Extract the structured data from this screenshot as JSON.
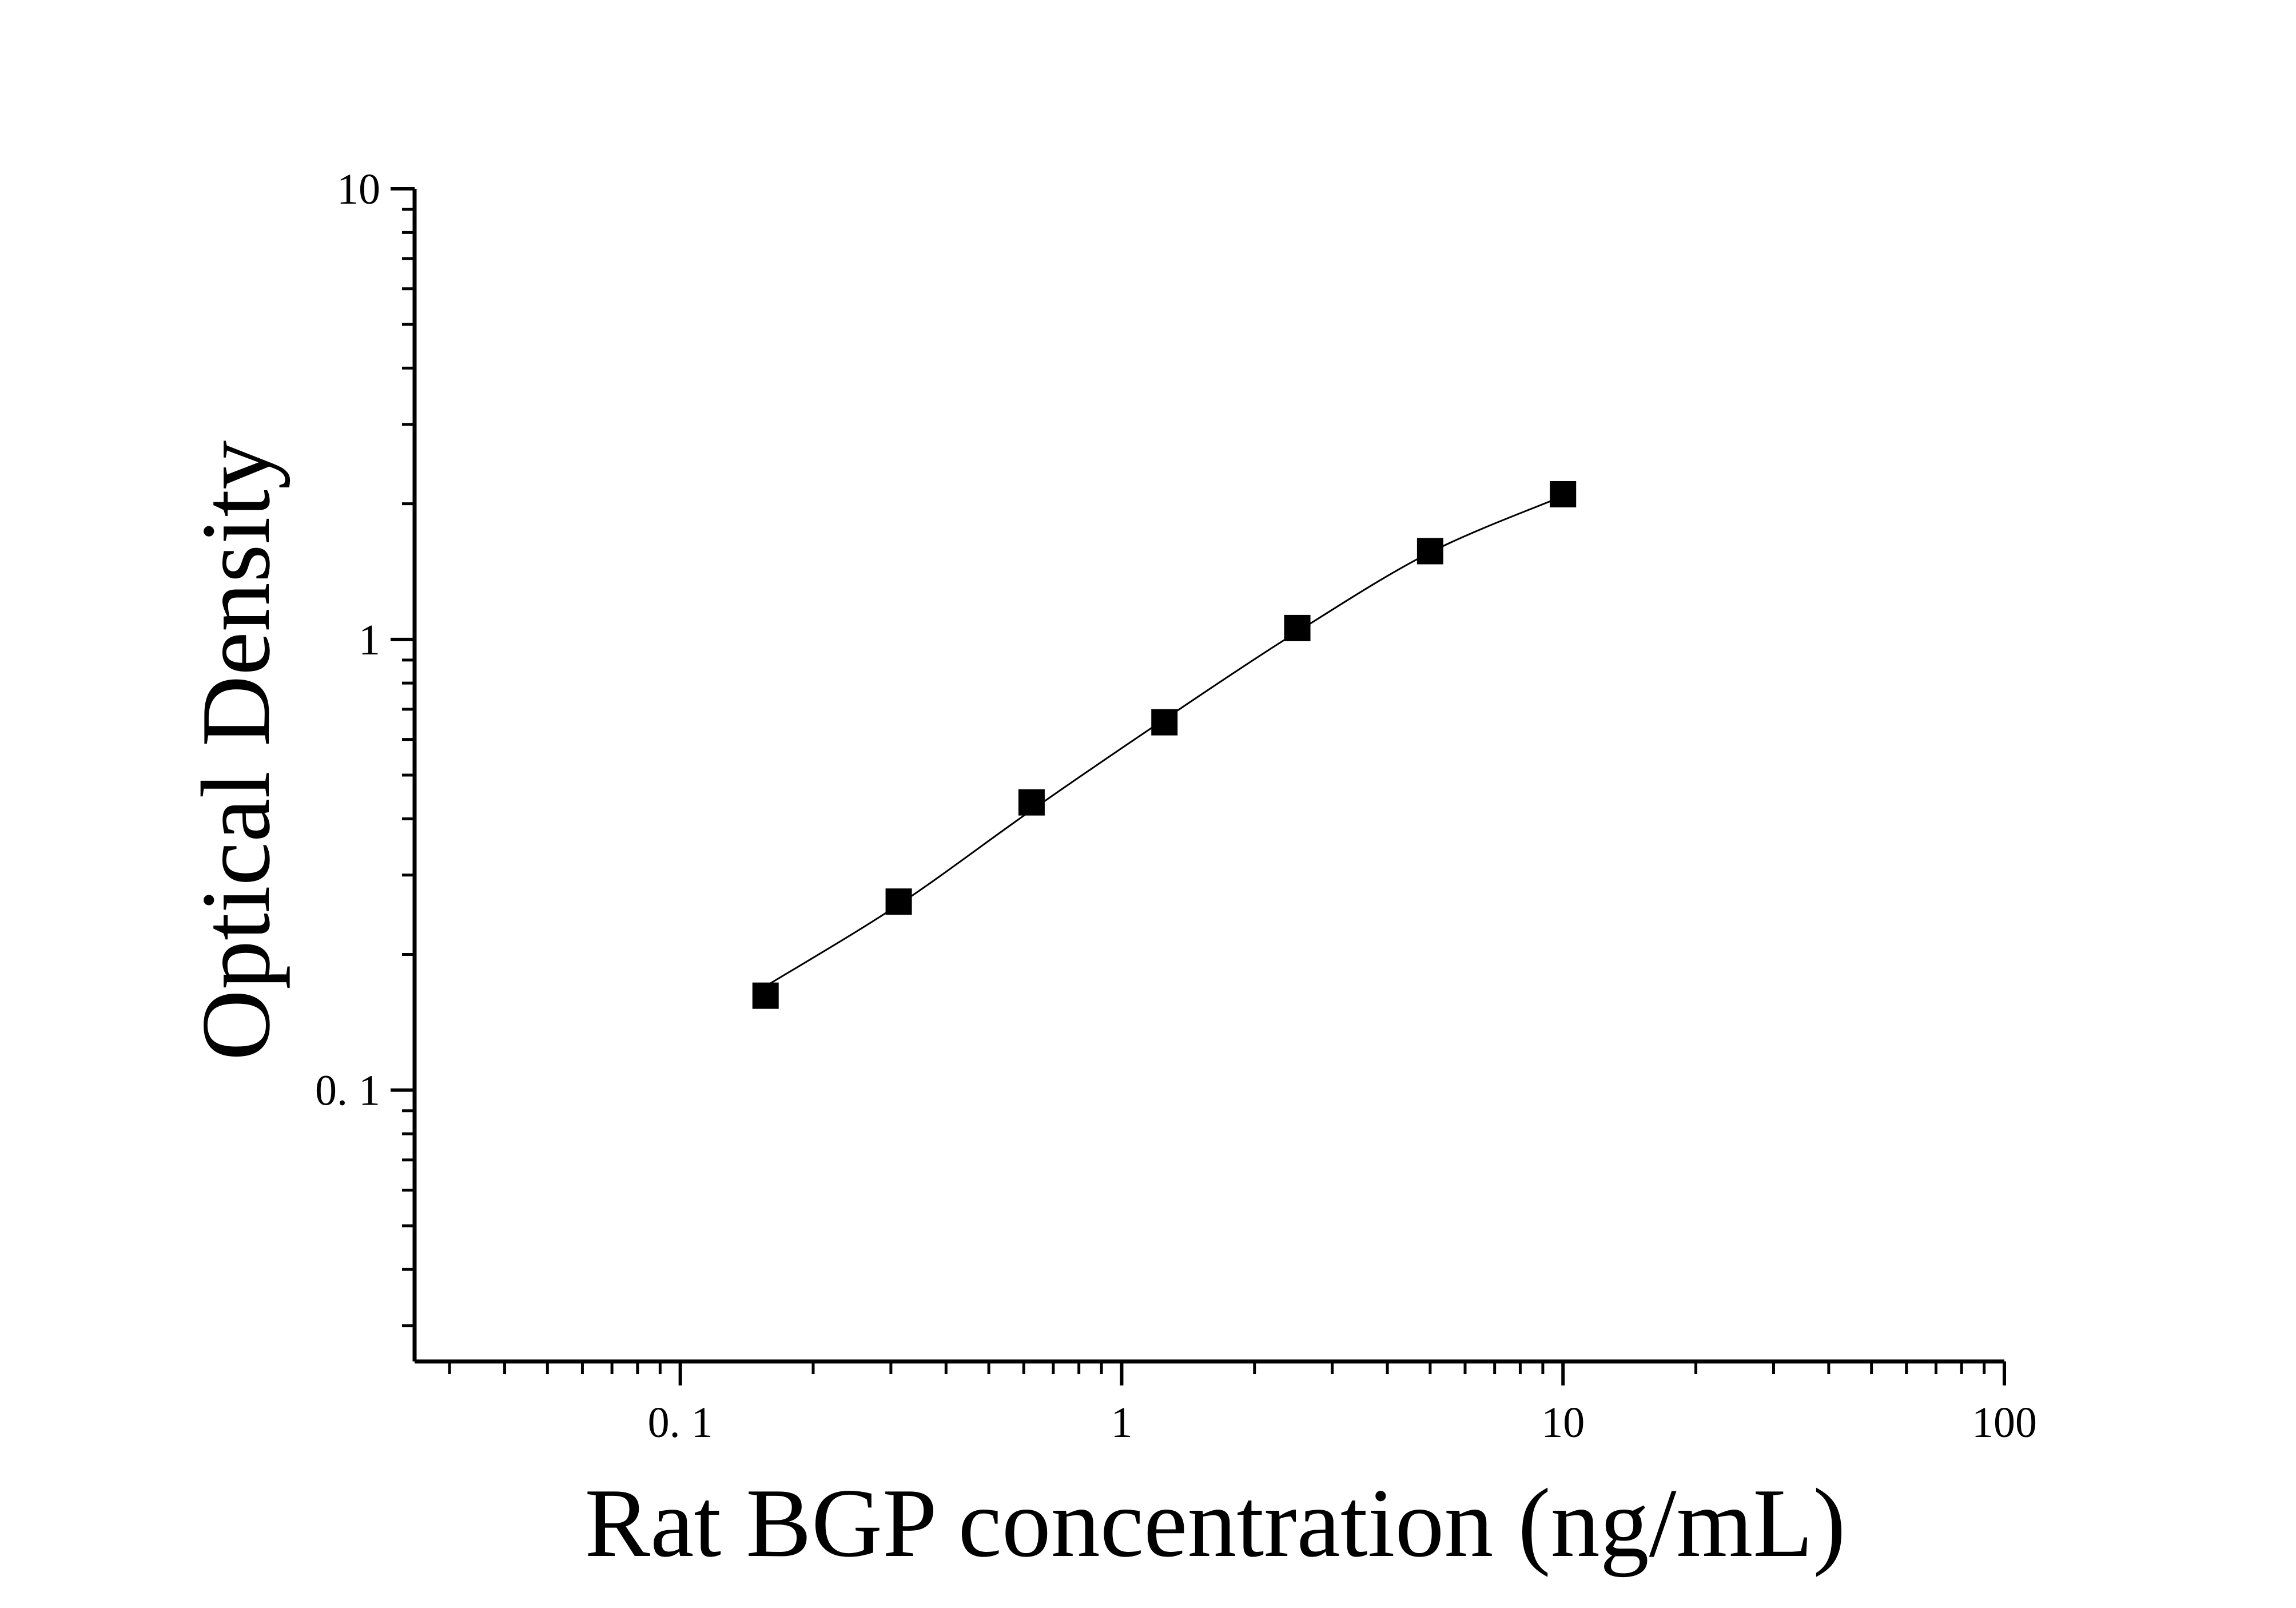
{
  "chart_data": {
    "type": "scatter",
    "title": "",
    "xlabel": "Rat BGP concentration (ng/mL)",
    "ylabel": "Optical Density",
    "x_scale": "log",
    "y_scale": "log",
    "xlim": [
      0.025,
      100
    ],
    "ylim": [
      0.025,
      10
    ],
    "x_ticks": [
      {
        "value": 0.1,
        "label": "0. 1"
      },
      {
        "value": 1,
        "label": "1"
      },
      {
        "value": 10,
        "label": "10"
      },
      {
        "value": 100,
        "label": "100"
      }
    ],
    "y_ticks": [
      {
        "value": 0.1,
        "label": "0. 1"
      },
      {
        "value": 1,
        "label": "1"
      },
      {
        "value": 10,
        "label": "10"
      }
    ],
    "grid": false,
    "legend": "none",
    "colors": {
      "marker": "#000000",
      "line": "#000000",
      "axis": "#000000",
      "background": "#ffffff"
    },
    "series": [
      {
        "marker": "square",
        "points": [
          {
            "x": 0.156,
            "y": 0.162
          },
          {
            "x": 0.3125,
            "y": 0.262
          },
          {
            "x": 0.625,
            "y": 0.435
          },
          {
            "x": 1.25,
            "y": 0.655
          },
          {
            "x": 2.5,
            "y": 1.06
          },
          {
            "x": 5,
            "y": 1.57
          },
          {
            "x": 10,
            "y": 2.1
          }
        ]
      }
    ],
    "fit_curve": {
      "type": "smooth",
      "points": [
        {
          "x": 0.156,
          "y": 0.17
        },
        {
          "x": 0.3125,
          "y": 0.258
        },
        {
          "x": 0.625,
          "y": 0.418
        },
        {
          "x": 1.25,
          "y": 0.665
        },
        {
          "x": 2.5,
          "y": 1.04
        },
        {
          "x": 5,
          "y": 1.56
        },
        {
          "x": 10,
          "y": 2.08
        }
      ]
    }
  }
}
